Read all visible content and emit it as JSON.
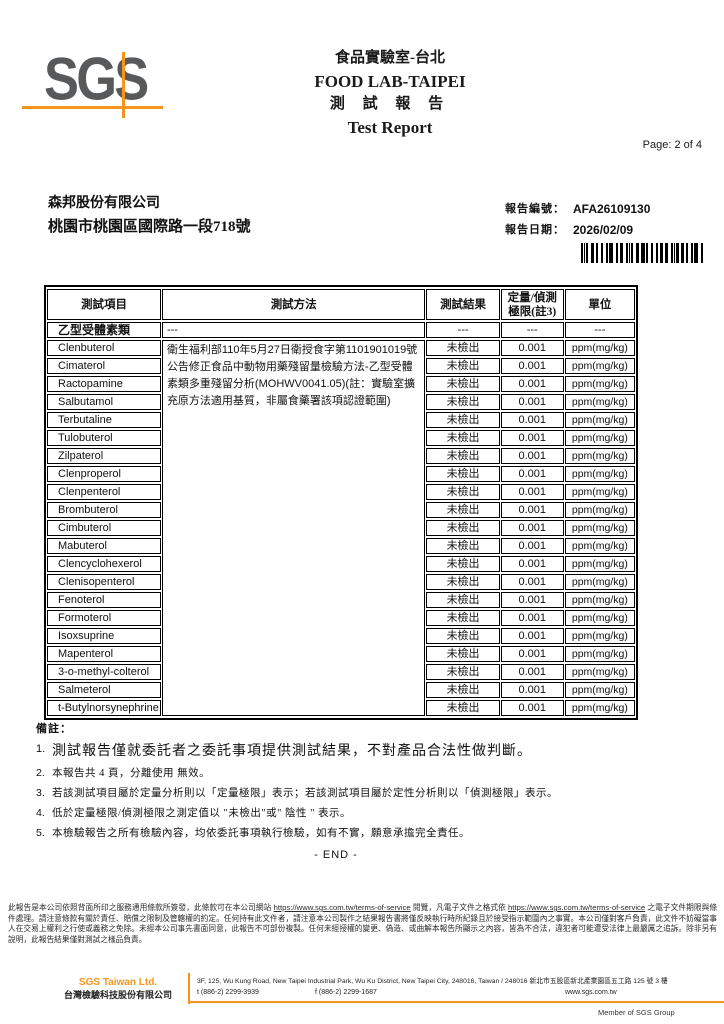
{
  "header": {
    "logo_text": "SGS",
    "lab_title_zh": "食品實驗室-台北",
    "lab_title_en": "FOOD LAB-TAIPEI",
    "report_title_zh": "測 試 報 告",
    "report_title_en": "Test Report",
    "page_label": "Page: 2 of 4"
  },
  "client": {
    "name": "森邦股份有限公司",
    "address": "桃園市桃園區國際路一段718號"
  },
  "meta": {
    "report_no_label": "報告編號：",
    "report_no": "AFA26109130",
    "report_date_label": "報告日期：",
    "report_date": "2026/02/09"
  },
  "table": {
    "headers": {
      "item": "測試項目",
      "method": "測試方法",
      "result": "測試結果",
      "limit": "定量/偵測 極限(註3)",
      "unit": "單位"
    },
    "group_row": {
      "item": "乙型受體素類",
      "method": "---",
      "result": "---",
      "limit": "---",
      "unit": "---"
    },
    "method_text": "衛生福利部110年5月27日衛授食字第1101901019號公告修正食品中動物用藥殘留量檢驗方法-乙型受體素類多重殘留分析(MOHWV0041.05)(註：實驗室擴充原方法適用基質，非屬食藥署該項認證範圍)",
    "rows": [
      {
        "item": "Clenbuterol",
        "result": "未檢出",
        "limit": "0.001",
        "unit": "ppm(mg/kg)"
      },
      {
        "item": "Cimaterol",
        "result": "未檢出",
        "limit": "0.001",
        "unit": "ppm(mg/kg)"
      },
      {
        "item": "Ractopamine",
        "result": "未檢出",
        "limit": "0.001",
        "unit": "ppm(mg/kg)"
      },
      {
        "item": "Salbutamol",
        "result": "未檢出",
        "limit": "0.001",
        "unit": "ppm(mg/kg)"
      },
      {
        "item": "Terbutaline",
        "result": "未檢出",
        "limit": "0.001",
        "unit": "ppm(mg/kg)"
      },
      {
        "item": "Tulobuterol",
        "result": "未檢出",
        "limit": "0.001",
        "unit": "ppm(mg/kg)"
      },
      {
        "item": "Zilpaterol",
        "result": "未檢出",
        "limit": "0.001",
        "unit": "ppm(mg/kg)"
      },
      {
        "item": "Clenproperol",
        "result": "未檢出",
        "limit": "0.001",
        "unit": "ppm(mg/kg)"
      },
      {
        "item": "Clenpenterol",
        "result": "未檢出",
        "limit": "0.001",
        "unit": "ppm(mg/kg)"
      },
      {
        "item": "Brombuterol",
        "result": "未檢出",
        "limit": "0.001",
        "unit": "ppm(mg/kg)"
      },
      {
        "item": "Cimbuterol",
        "result": "未檢出",
        "limit": "0.001",
        "unit": "ppm(mg/kg)"
      },
      {
        "item": "Mabuterol",
        "result": "未檢出",
        "limit": "0.001",
        "unit": "ppm(mg/kg)"
      },
      {
        "item": "Clencyclohexerol",
        "result": "未檢出",
        "limit": "0.001",
        "unit": "ppm(mg/kg)"
      },
      {
        "item": "Clenisopenterol",
        "result": "未檢出",
        "limit": "0.001",
        "unit": "ppm(mg/kg)"
      },
      {
        "item": "Fenoterol",
        "result": "未檢出",
        "limit": "0.001",
        "unit": "ppm(mg/kg)"
      },
      {
        "item": "Formoterol",
        "result": "未檢出",
        "limit": "0.001",
        "unit": "ppm(mg/kg)"
      },
      {
        "item": "Isoxsuprine",
        "result": "未檢出",
        "limit": "0.001",
        "unit": "ppm(mg/kg)"
      },
      {
        "item": "Mapenterol",
        "result": "未檢出",
        "limit": "0.001",
        "unit": "ppm(mg/kg)"
      },
      {
        "item": "3-o-methyl-colterol",
        "result": "未檢出",
        "limit": "0.001",
        "unit": "ppm(mg/kg)"
      },
      {
        "item": "Salmeterol",
        "result": "未檢出",
        "limit": "0.001",
        "unit": "ppm(mg/kg)"
      },
      {
        "item": "t-Butylnorsynephrine",
        "result": "未檢出",
        "limit": "0.001",
        "unit": "ppm(mg/kg)"
      }
    ]
  },
  "notes": {
    "label": "備註：",
    "items": [
      {
        "num": "1.",
        "text": "測試報告僅就委託者之委託事項提供測試結果，不對產品合法性做判斷。"
      },
      {
        "num": "2.",
        "text": "本報告共 4 頁，分離使用 無效。"
      },
      {
        "num": "3.",
        "text": "若該測試項目屬於定量分析則以「定量極限」表示；若該測試項目屬於定性分析則以「偵測極限」表示。"
      },
      {
        "num": "4.",
        "text": "低於定量極限/偵測極限之測定值以 \"未檢出\"或\" 陰性 \" 表示。"
      },
      {
        "num": "5.",
        "text": "本檢驗報告之所有檢驗內容，均依委託事項執行檢驗，如有不實，願意承擔完全責任。"
      }
    ],
    "end_label": "- END -"
  },
  "disclaimer": {
    "part1": "此報告是本公司依照背面所印之服務通用條款所簽發，此條款可在本公司網站 ",
    "link1": "https://www.sgs.com.tw/terms-of-service",
    "part2": " 閱覽，凡電子文件之格式依 ",
    "link2": "https://www.sgs.com.tw/terms-of-service",
    "part3": " 之電子文件期限與條件處理。請注意條款有關於責任、賠償之限制及管轄權的約定。任何持有此文件者，請注意本公司製作之結果報告書將僅反映執行時所紀錄且於接受指示範圍內之事實。本公司僅對客戶負責，此文件不妨礙當事人在交易上權利之行使或義務之免除。未經本公司事先書面同意，此報告不可部份複製。任何未經授權的變更、偽造、或曲解本報告所顯示之內容，皆為不合法，違犯者可能遭受法律上最嚴厲之追訴。除非另有說明，此報告結果僅對測試之樣品負責。"
  },
  "footer": {
    "company_en": "SGS Taiwan Ltd.",
    "company_zh": "台灣檢驗科技股份有限公司",
    "address": "3F, 125, Wu Kung Road, New Taipei Industrial Park, Wu Ku District, New Taipei City, 248016, Taiwan / 248016 新北市五股區新北產業園區五工路 125 號 3 樓",
    "tel": "t (886-2) 2299-3939",
    "fax": "f (886-2) 2299-1687",
    "website": "www.sgs.com.tw",
    "member": "Member of SGS Group"
  },
  "colors": {
    "brand_orange": "#F7941E",
    "logo_gray": "#58595B"
  }
}
